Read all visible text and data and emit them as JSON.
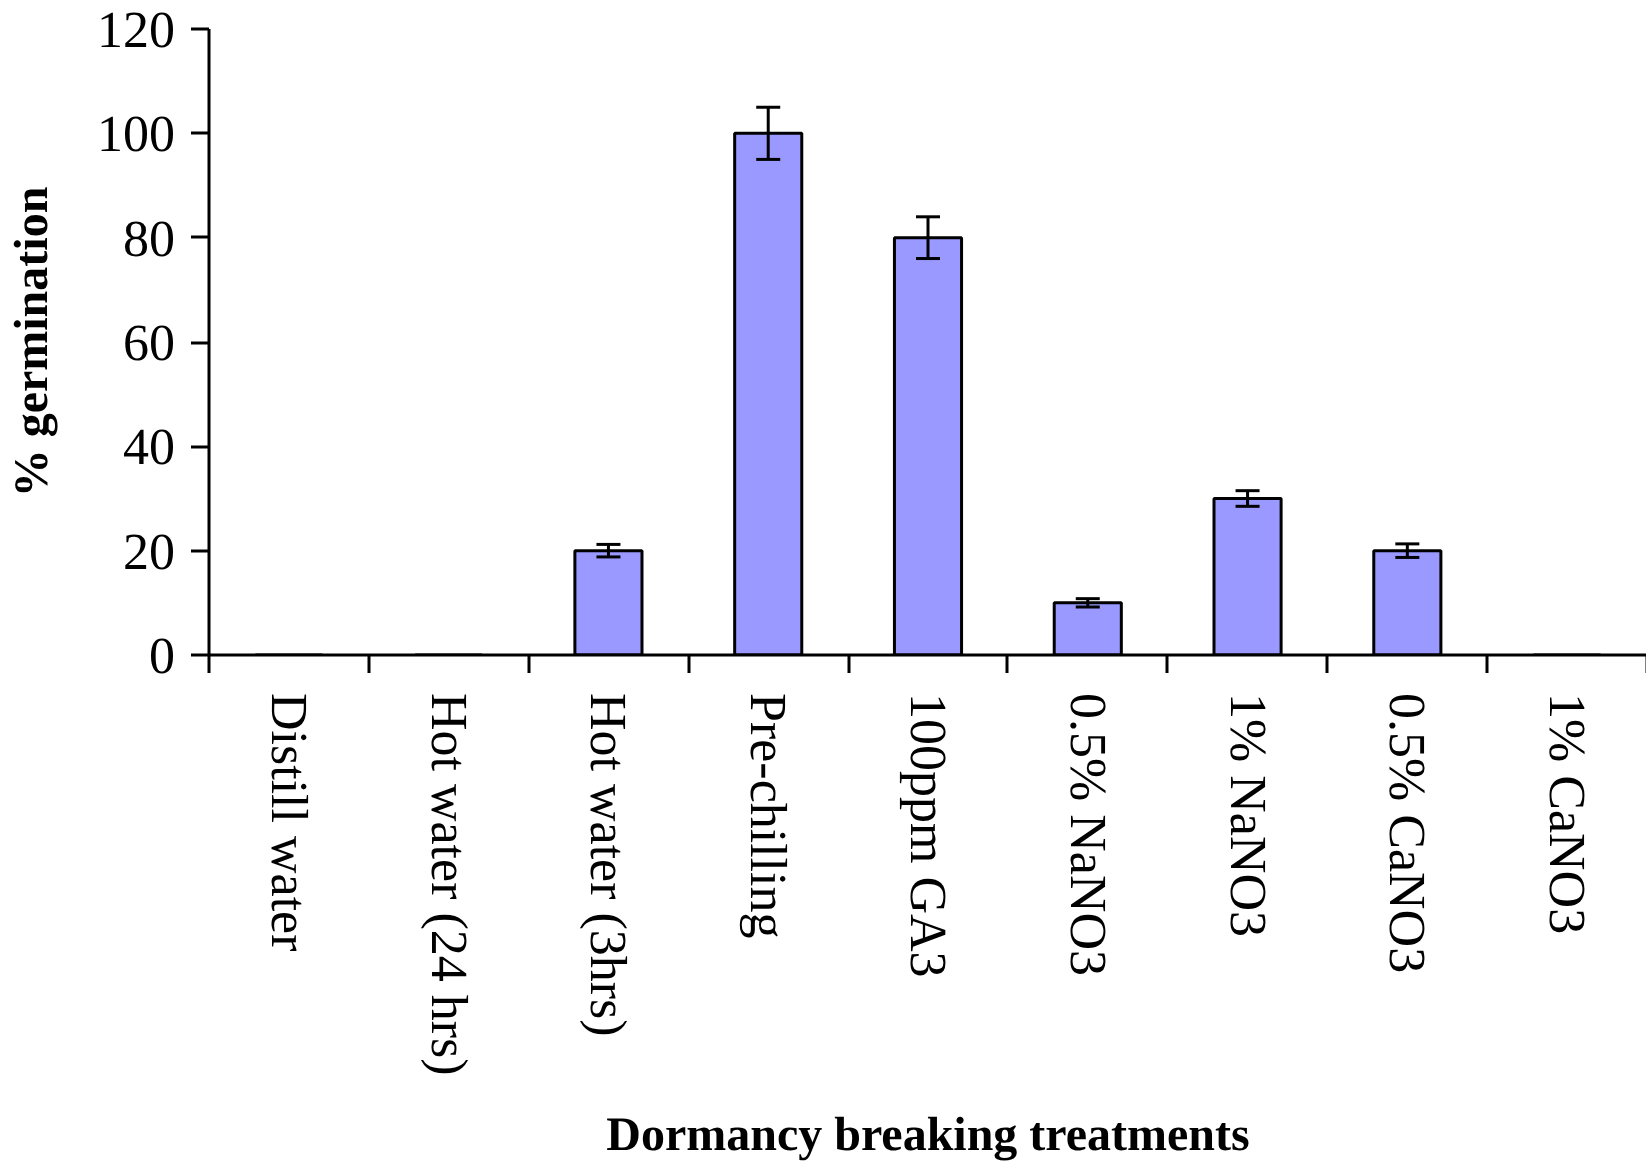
{
  "chart_data": {
    "type": "bar",
    "xlabel": "Dormancy breaking treatments",
    "ylabel": "% germination",
    "categories": [
      "Distill water",
      "Hot water (24 hrs)",
      "Hot water (3hrs)",
      "Pre-chilling",
      "100ppm GA3",
      "0.5% NaNO3",
      "1% NaNO3",
      "0.5% CaNO3",
      "1% CaNO3"
    ],
    "values": [
      0,
      0,
      20,
      100,
      80,
      10,
      30,
      20,
      0
    ],
    "errors": [
      null,
      null,
      1.2,
      5,
      4,
      0.8,
      1.5,
      1.3,
      null
    ],
    "color": "#9999ff",
    "ylim": [
      0,
      120
    ],
    "yticks": [
      0,
      20,
      40,
      60,
      80,
      100,
      120
    ],
    "grid": false
  }
}
